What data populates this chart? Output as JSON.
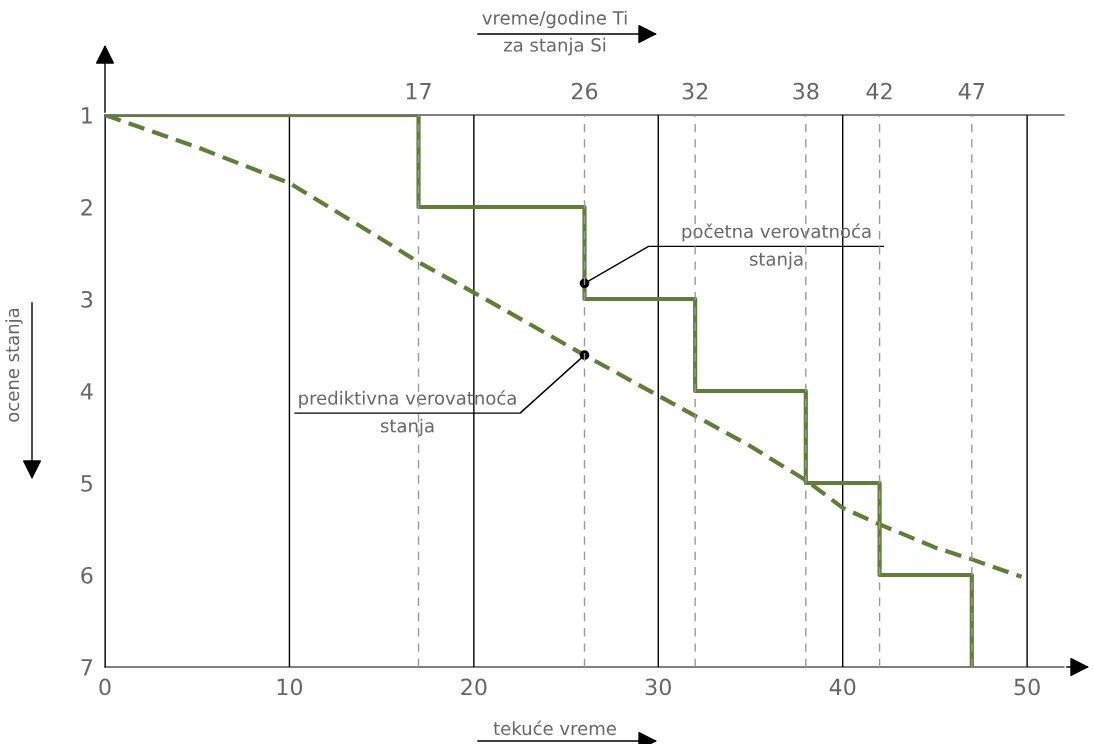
{
  "chart_data": {
    "type": "line",
    "xlabel": "tekuće vreme",
    "ylabel": "ocene stanja",
    "x2label": "vreme/godine Ti\nza stanja Si",
    "xlim": [
      0,
      52
    ],
    "xticks": [
      0,
      10,
      20,
      30,
      40,
      50
    ],
    "x2lim": [
      0,
      52
    ],
    "x2ticks": [
      17,
      26,
      32,
      38,
      42,
      47
    ],
    "ylim": [
      7,
      1
    ],
    "yticks": [
      1,
      2,
      3,
      4,
      5,
      6,
      7
    ],
    "grid": "x",
    "series": [
      {
        "type": "step",
        "color": "#5e7f35",
        "line_style": "solid",
        "x": [
          0,
          17,
          26,
          32,
          38,
          42,
          47
        ],
        "values": [
          1,
          2,
          3,
          4,
          5,
          6,
          7
        ]
      },
      {
        "type": "line",
        "color": "#5e7f35",
        "line_style": "dashed",
        "x": [
          0,
          5,
          10,
          15,
          17,
          20,
          26,
          30,
          35,
          38,
          40,
          42,
          45,
          47,
          49.7
        ],
        "values": [
          1,
          1.35,
          1.74,
          2.35,
          2.6,
          2.93,
          3.61,
          4.05,
          4.6,
          4.97,
          5.27,
          5.45,
          5.7,
          5.83,
          6.02
        ]
      }
    ],
    "annotations": [
      {
        "text": "početna verovatnoća\nstanja",
        "x": 26,
        "y": 2.83
      },
      {
        "text": "prediktivna verovatnoća\nstanja",
        "x": 26,
        "y": 3.61
      }
    ]
  }
}
